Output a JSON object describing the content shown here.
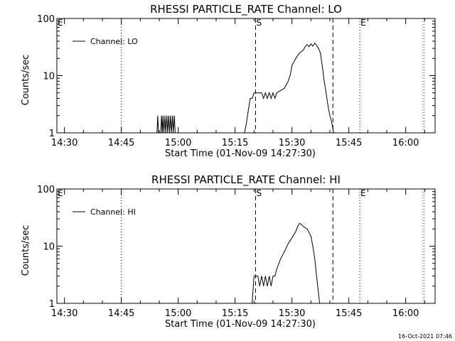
{
  "footer": {
    "timestamp": "16-Oct-2021 07:46"
  },
  "chart_data": [
    {
      "type": "line",
      "title": "RHESSI PARTICLE_RATE Channel: LO",
      "xlabel": "Start Time (01-Nov-09 14:27:30)",
      "ylabel": "Counts/sec",
      "yscale": "log",
      "ylim": [
        1,
        100
      ],
      "xlim_minutes": [
        -2,
        75
      ],
      "xticks": [
        "14:30",
        "14:45",
        "15:00",
        "15:15",
        "15:30",
        "15:45",
        "16:00"
      ],
      "xtick_minutes": [
        0,
        15,
        30,
        45,
        60,
        75,
        90
      ],
      "yticks": [
        "1",
        "10",
        "100"
      ],
      "ytick_values": [
        1,
        10,
        100
      ],
      "legend": {
        "label": "Channel: LO",
        "position": "top-left"
      },
      "markers": [
        {
          "label": "E",
          "minute": -2,
          "style": "none"
        },
        {
          "label": "",
          "minute": 15,
          "style": "dotted"
        },
        {
          "label": "S",
          "minute": 50.4,
          "style": "dashed"
        },
        {
          "label": "",
          "minute": 70.8,
          "style": "dashed"
        },
        {
          "label": "E",
          "minute": 77.9,
          "style": "dotted"
        },
        {
          "label": "",
          "minute": 94.8,
          "style": "dotted"
        }
      ],
      "series": [
        {
          "name": "Channel: LO",
          "segments": [
            [
              [
                24.4,
                1
              ],
              [
                24.6,
                2
              ],
              [
                24.8,
                1
              ],
              [
                25.4,
                1
              ],
              [
                25.6,
                2
              ],
              [
                25.8,
                1
              ],
              [
                26.0,
                2
              ],
              [
                26.2,
                1
              ],
              [
                26.5,
                2
              ],
              [
                26.7,
                1
              ],
              [
                27.0,
                2
              ],
              [
                27.2,
                1
              ],
              [
                27.5,
                2
              ],
              [
                27.7,
                1
              ],
              [
                28.0,
                2
              ],
              [
                28.2,
                1
              ],
              [
                28.5,
                2
              ],
              [
                28.7,
                1
              ],
              [
                29.0,
                2
              ],
              [
                29.2,
                1
              ]
            ],
            [
              [
                47.5,
                1
              ],
              [
                48.0,
                1.5
              ],
              [
                48.5,
                2.5
              ],
              [
                49.0,
                4
              ],
              [
                49.5,
                4
              ],
              [
                50.0,
                5
              ],
              [
                51.0,
                5
              ],
              [
                52.0,
                5
              ],
              [
                52.5,
                4
              ],
              [
                53.0,
                5
              ],
              [
                53.5,
                4
              ],
              [
                54.0,
                5
              ],
              [
                54.5,
                4
              ],
              [
                55.0,
                5
              ],
              [
                55.5,
                4
              ],
              [
                56.0,
                5
              ],
              [
                57.0,
                5.5
              ],
              [
                58.0,
                6
              ],
              [
                59.0,
                8
              ],
              [
                59.5,
                10
              ],
              [
                60.0,
                15
              ],
              [
                61.0,
                20
              ],
              [
                62.0,
                25
              ],
              [
                63.0,
                28
              ],
              [
                63.5,
                32
              ],
              [
                64.0,
                35
              ],
              [
                64.5,
                32
              ],
              [
                65.0,
                36
              ],
              [
                65.5,
                33
              ],
              [
                66.0,
                37
              ],
              [
                66.5,
                34
              ],
              [
                67.0,
                30
              ],
              [
                67.5,
                25
              ],
              [
                68.0,
                15
              ],
              [
                68.5,
                8
              ],
              [
                69.0,
                5
              ],
              [
                69.5,
                3
              ],
              [
                70.0,
                2
              ],
              [
                70.5,
                1.5
              ],
              [
                71.0,
                1
              ]
            ]
          ]
        }
      ]
    },
    {
      "type": "line",
      "title": "RHESSI PARTICLE_RATE Channel: HI",
      "xlabel": "Start Time (01-Nov-09 14:27:30)",
      "ylabel": "Counts/sec",
      "yscale": "log",
      "ylim": [
        1,
        100
      ],
      "xlim_minutes": [
        -2,
        75
      ],
      "xticks": [
        "14:30",
        "14:45",
        "15:00",
        "15:15",
        "15:30",
        "15:45",
        "16:00"
      ],
      "xtick_minutes": [
        0,
        15,
        30,
        45,
        60,
        75,
        90
      ],
      "yticks": [
        "1",
        "10",
        "100"
      ],
      "ytick_values": [
        1,
        10,
        100
      ],
      "legend": {
        "label": "Channel: HI",
        "position": "top-left"
      },
      "markers": [
        {
          "label": "E",
          "minute": -2,
          "style": "none"
        },
        {
          "label": "",
          "minute": 15,
          "style": "dotted"
        },
        {
          "label": "S",
          "minute": 50.4,
          "style": "dashed"
        },
        {
          "label": "",
          "minute": 70.8,
          "style": "dashed"
        },
        {
          "label": "E",
          "minute": 77.9,
          "style": "dotted"
        },
        {
          "label": "",
          "minute": 94.8,
          "style": "dotted"
        }
      ],
      "series": [
        {
          "name": "Channel: HI",
          "segments": [
            [
              [
                49.5,
                1
              ],
              [
                49.8,
                2
              ],
              [
                50.0,
                3
              ],
              [
                51.0,
                3
              ],
              [
                51.5,
                2
              ],
              [
                52.0,
                3
              ],
              [
                52.5,
                2
              ],
              [
                53.0,
                3
              ],
              [
                53.5,
                2
              ],
              [
                54.0,
                3
              ],
              [
                54.5,
                2
              ],
              [
                55.0,
                3
              ],
              [
                55.5,
                3
              ],
              [
                56.0,
                4
              ],
              [
                57.0,
                6
              ],
              [
                58.0,
                8
              ],
              [
                59.0,
                11
              ],
              [
                60.0,
                14
              ],
              [
                61.0,
                18
              ],
              [
                61.5,
                22
              ],
              [
                62.0,
                25
              ],
              [
                62.5,
                24
              ],
              [
                63.0,
                22
              ],
              [
                64.0,
                20
              ],
              [
                65.0,
                15
              ],
              [
                65.5,
                10
              ],
              [
                66.0,
                6
              ],
              [
                66.5,
                3
              ],
              [
                67.0,
                1.5
              ],
              [
                67.3,
                1
              ]
            ]
          ]
        }
      ]
    }
  ]
}
